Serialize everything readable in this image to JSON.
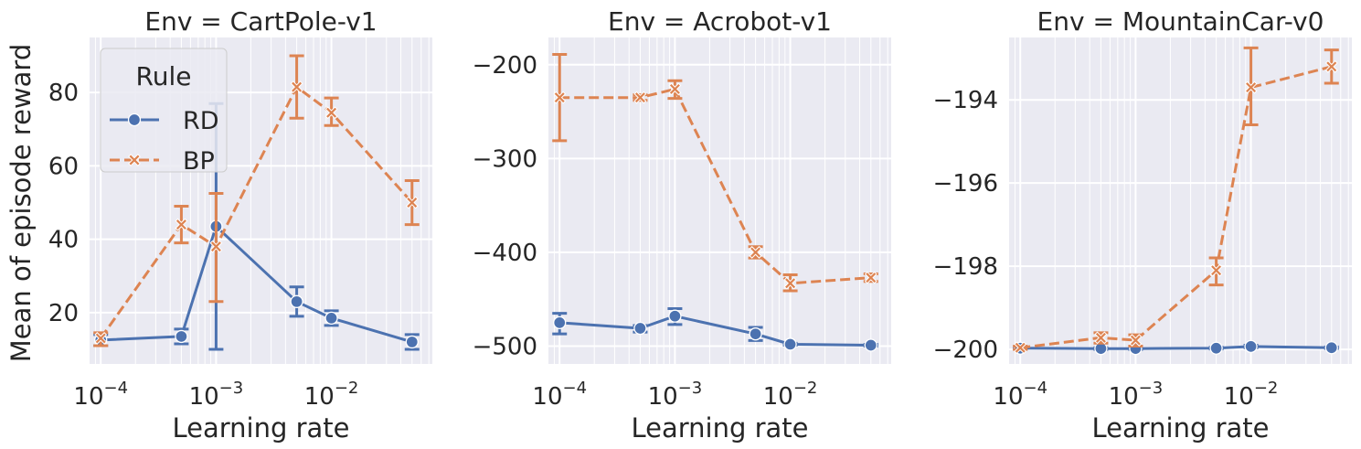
{
  "figure": {
    "ylabel": "Mean of episode reward",
    "xlabel": "Learning rate",
    "legend": {
      "title": "Rule",
      "placement": "top-left",
      "entries": [
        "RD",
        "BP"
      ]
    },
    "colors": {
      "RD": "#4c72b0",
      "BP": "#dd8452",
      "plot_bg": "#eaeaf2",
      "grid": "#ffffff"
    }
  },
  "chart_data": [
    {
      "type": "line",
      "title": "Env = CartPole-v1",
      "xlabel": "Learning rate",
      "ylabel": "Mean of episode reward",
      "xscale": "log",
      "xlim": [
        8e-05,
        0.075
      ],
      "ylim": [
        6,
        95
      ],
      "x_ticks": [
        0.0001,
        0.001,
        0.01
      ],
      "x_tick_labels": [
        {
          "base": "10",
          "exp": "−4"
        },
        {
          "base": "10",
          "exp": "−3"
        },
        {
          "base": "10",
          "exp": "−2"
        }
      ],
      "y_ticks": [
        20,
        40,
        60,
        80
      ],
      "y_tick_labels": [
        "20",
        "40",
        "60",
        "80"
      ],
      "grid": true,
      "series": [
        {
          "name": "RD",
          "x": [
            0.0001,
            0.0005,
            0.001,
            0.005,
            0.01,
            0.05
          ],
          "y": [
            12.5,
            13.5,
            43.5,
            23,
            18.5,
            12
          ],
          "err_low": [
            11,
            11.5,
            10,
            19,
            16.5,
            10
          ],
          "err_high": [
            14,
            15.5,
            77,
            27,
            20.5,
            14
          ]
        },
        {
          "name": "BP",
          "x": [
            0.0001,
            0.0005,
            0.001,
            0.005,
            0.01,
            0.05
          ],
          "y": [
            13,
            44,
            38,
            81.5,
            74.5,
            50
          ],
          "err_low": [
            11,
            39,
            23,
            73,
            71,
            44
          ],
          "err_high": [
            14.5,
            49,
            52.5,
            90,
            78.5,
            56
          ]
        }
      ],
      "show_legend": true
    },
    {
      "type": "line",
      "title": "Env = Acrobot-v1",
      "xlabel": "Learning rate",
      "xscale": "log",
      "xlim": [
        8e-05,
        0.075
      ],
      "ylim": [
        -519,
        -171
      ],
      "x_ticks": [
        0.0001,
        0.001,
        0.01
      ],
      "x_tick_labels": [
        {
          "base": "10",
          "exp": "−4"
        },
        {
          "base": "10",
          "exp": "−3"
        },
        {
          "base": "10",
          "exp": "−2"
        }
      ],
      "y_ticks": [
        -500,
        -400,
        -300,
        -200
      ],
      "y_tick_labels": [
        "−500",
        "−400",
        "−300",
        "−200"
      ],
      "grid": true,
      "series": [
        {
          "name": "RD",
          "x": [
            0.0001,
            0.0005,
            0.001,
            0.005,
            0.01,
            0.05
          ],
          "y": [
            -475,
            -481,
            -468,
            -487,
            -498,
            -499
          ],
          "err_low": [
            -487,
            -485,
            -477,
            -494,
            -499,
            -500
          ],
          "err_high": [
            -465,
            -478,
            -460,
            -480,
            -497,
            -498
          ]
        },
        {
          "name": "BP",
          "x": [
            0.0001,
            0.0005,
            0.001,
            0.005,
            0.01,
            0.05
          ],
          "y": [
            -235,
            -235,
            -226,
            -400,
            -433,
            -427
          ],
          "err_low": [
            -281,
            -238,
            -236,
            -406,
            -441,
            -431
          ],
          "err_high": [
            -189,
            -232,
            -217,
            -394,
            -424,
            -423
          ]
        }
      ],
      "show_legend": false
    },
    {
      "type": "line",
      "title": "Env = MountainCar-v0",
      "xlabel": "Learning rate",
      "xscale": "log",
      "xlim": [
        8e-05,
        0.075
      ],
      "ylim": [
        -200.35,
        -192.5
      ],
      "x_ticks": [
        0.0001,
        0.001,
        0.01
      ],
      "x_tick_labels": [
        {
          "base": "10",
          "exp": "−4"
        },
        {
          "base": "10",
          "exp": "−3"
        },
        {
          "base": "10",
          "exp": "−2"
        }
      ],
      "y_ticks": [
        -200,
        -198,
        -196,
        -194
      ],
      "y_tick_labels": [
        "−200",
        "−198",
        "−196",
        "−194"
      ],
      "grid": true,
      "series": [
        {
          "name": "RD",
          "x": [
            0.0001,
            0.0005,
            0.001,
            0.005,
            0.01,
            0.05
          ],
          "y": [
            -199.97,
            -199.98,
            -199.98,
            -199.97,
            -199.93,
            -199.96
          ],
          "err_low": [
            -199.99,
            -200.0,
            -200.0,
            -199.99,
            -199.96,
            -199.98
          ],
          "err_high": [
            -199.95,
            -199.96,
            -199.96,
            -199.95,
            -199.9,
            -199.94
          ]
        },
        {
          "name": "BP",
          "x": [
            0.0001,
            0.0005,
            0.001,
            0.005,
            0.01,
            0.05
          ],
          "y": [
            -199.96,
            -199.72,
            -199.78,
            -198.1,
            -193.7,
            -193.2
          ],
          "err_low": [
            -200.0,
            -199.85,
            -199.92,
            -198.45,
            -194.6,
            -193.6
          ],
          "err_high": [
            -199.92,
            -199.6,
            -199.65,
            -197.8,
            -192.75,
            -192.8
          ]
        }
      ],
      "show_legend": false
    }
  ]
}
